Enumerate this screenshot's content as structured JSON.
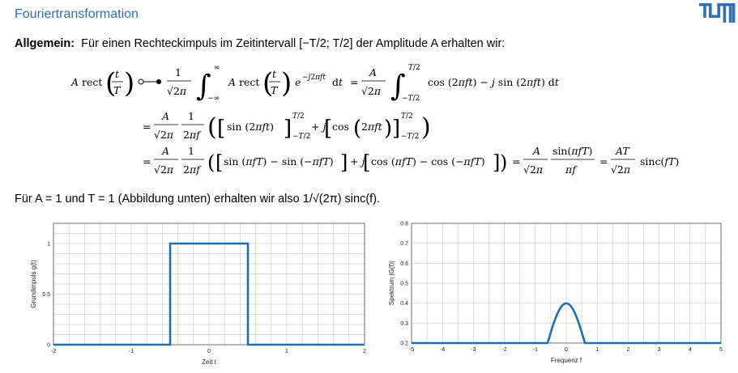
{
  "slide": {
    "title": "Fouriertransformation",
    "logo_text": "TUM",
    "intro_bold": "Allgemein:",
    "intro_text": "Für einen Rechteckimpuls im Zeitintervall [−T/2; T/2] der Amplitude A erhalten wir:",
    "bottom_text": "Für A = 1 und T = 1 (Abbildung unten) erhalten wir also",
    "bottom_formula": "1/√(2π) sinc(f).",
    "equation_lines": [
      "A rect(t/T) ○—● 1/√(2π) ∫_{−∞}^{∞} A rect(t/T) e^{−j2πft} dt = A/√(2π) ∫_{−T/2}^{T/2} cos(2πft) − j sin(2πft) dt",
      "= A/√(2π) · 1/(2πf) ( [ sin(2πft) ]_{−T/2}^{T/2} + j [ cos(2πft) ]_{−T/2}^{T/2} )",
      "= A/√(2π) · 1/(2πf) ( [ sin(πfT) − sin(−πfT) ] + j [ cos(πfT) − cos(−πfT) ] ) = A/√(2π) · sin(πfT)/(πf) = AT/√(2π) sinc(fT)"
    ]
  },
  "colors": {
    "title": "#3070b3",
    "curve": "#1f6fb5",
    "grid": "#cfcfcf"
  },
  "chart_data": [
    {
      "type": "line",
      "title": "",
      "xlabel": "Zeit t",
      "ylabel": "Grundimpuls g(t)",
      "xlim": [
        -2,
        2
      ],
      "ylim": [
        0,
        1.2
      ],
      "xticks": [
        "-2",
        "-1",
        "0",
        "1",
        "2"
      ],
      "yticks": [
        "0",
        "0.5",
        "1"
      ],
      "grid": true,
      "series": [
        {
          "x": [
            -2,
            -0.5,
            -0.5,
            0.5,
            0.5,
            2
          ],
          "y": [
            0,
            0,
            1,
            1,
            0,
            0
          ]
        }
      ]
    },
    {
      "type": "line",
      "title": "",
      "xlabel": "Frequenz f",
      "ylabel": "Spektrum |G(f)|",
      "xlim": [
        -5,
        5
      ],
      "ylim": [
        0.2,
        0.8
      ],
      "xticks": [
        "-5",
        "-4",
        "-3",
        "-2",
        "-1",
        "0",
        "1",
        "2",
        "3",
        "4",
        "5"
      ],
      "yticks": [
        "0.2",
        "0.3",
        "0.4",
        "0.5",
        "0.6",
        "0.7",
        "0.8"
      ],
      "grid": true,
      "function": "|sinc(f)|/sqrt(2*pi)"
    }
  ]
}
